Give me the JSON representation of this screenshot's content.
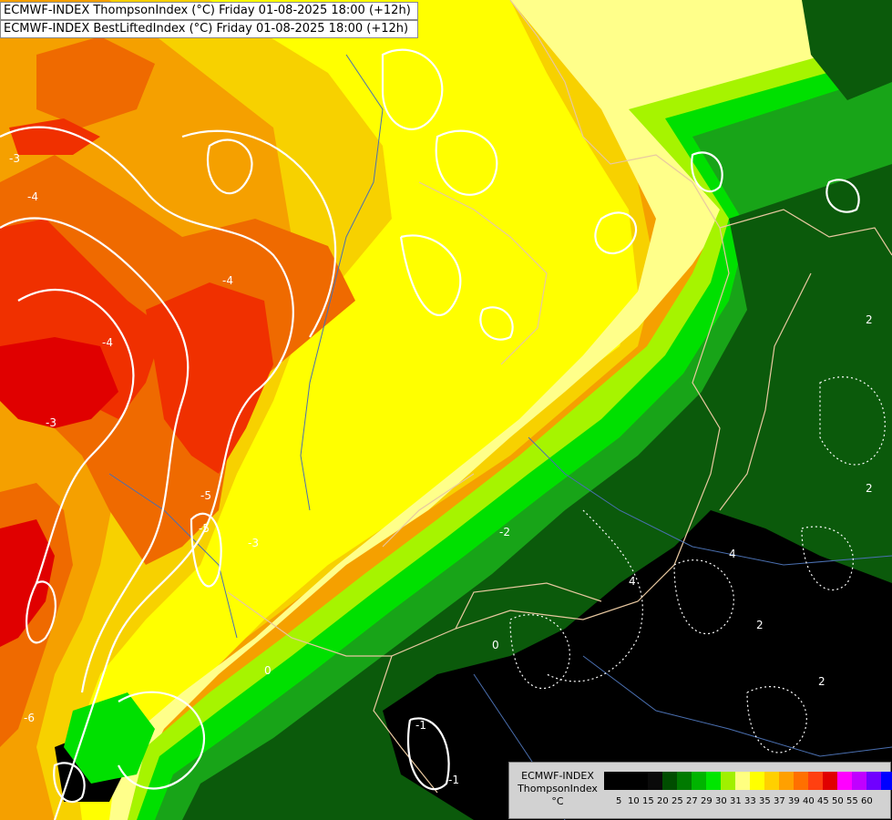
{
  "titles": {
    "line1": "ECMWF-INDEX ThompsonIndex (°C) Friday 01-08-2025 18:00 (+12h)",
    "line2": "ECMWF-INDEX BestLiftedIndex (°C) Friday 01-08-2025 18:00 (+12h)"
  },
  "legend": {
    "line1": "ECMWF-INDEX",
    "line2": "ThompsonIndex",
    "line3": "°C",
    "ticks": [
      "5",
      "10",
      "15",
      "20",
      "25",
      "27",
      "29",
      "30",
      "31",
      "33",
      "35",
      "37",
      "39",
      "40",
      "45",
      "50",
      "55",
      "60"
    ],
    "colors": [
      "#000000",
      "#000000",
      "#000000",
      "#0a0a0a",
      "#004d00",
      "#007a00",
      "#00b400",
      "#00e600",
      "#a0f000",
      "#ffff80",
      "#ffff00",
      "#ffd000",
      "#ffa000",
      "#ff7000",
      "#ff4010",
      "#e00000",
      "#ff00ff",
      "#c000ff",
      "#7000ff",
      "#0000ff"
    ]
  },
  "map_data": {
    "palette": {
      "black": "#000000",
      "dark_green": "#0b5a0b",
      "green": "#18a418",
      "bright_green": "#00e000",
      "lime": "#a6f400",
      "pale_yellow": "#ffff8a",
      "yellow": "#ffff00",
      "gold": "#f7d100",
      "orange": "#f5a000",
      "dark_orange": "#ef6a00",
      "red_orange": "#f03000",
      "red": "#e00000"
    },
    "contour_labels": [
      "-3",
      "-4",
      "-3",
      "-4",
      "-4",
      "-5",
      "-5",
      "-3",
      "-6",
      "-2",
      "-1",
      "0",
      "0",
      "-1",
      "2",
      "2",
      "2",
      "2",
      "4",
      "4"
    ]
  }
}
